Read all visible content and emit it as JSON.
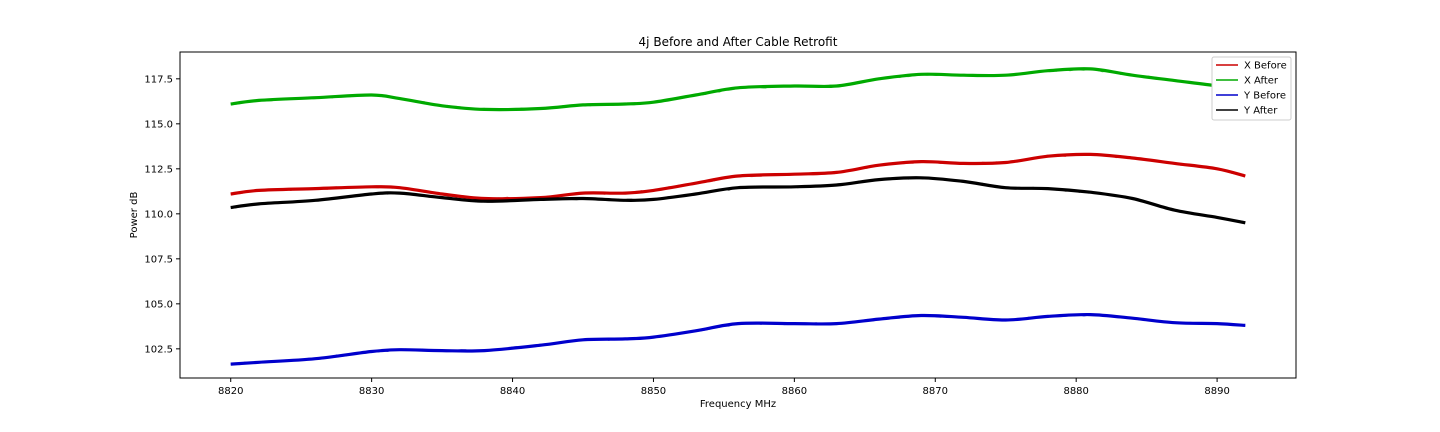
{
  "chart_data": {
    "type": "line",
    "title": "4j Before and After Cable Retrofit",
    "xlabel": "Frequency MHz",
    "ylabel": "Power dB",
    "xlim": [
      8816.4,
      8895.6
    ],
    "ylim": [
      100.88,
      118.99
    ],
    "xticks": [
      8820,
      8830,
      8840,
      8850,
      8860,
      8870,
      8880,
      8890
    ],
    "xtick_labels": [
      "8820",
      "8830",
      "8840",
      "8850",
      "8860",
      "8870",
      "8880",
      "8890"
    ],
    "yticks": [
      102.5,
      105.0,
      107.5,
      110.0,
      112.5,
      115.0,
      117.5
    ],
    "ytick_labels": [
      "102.5",
      "105.0",
      "107.5",
      "110.0",
      "112.5",
      "115.0",
      "117.5"
    ],
    "grid": false,
    "legend_position": "top-right",
    "series": [
      {
        "name": "X Before",
        "color": "#cc0000",
        "x": [
          8820,
          8822,
          8826,
          8830,
          8832,
          8835,
          8838,
          8842,
          8845,
          8848,
          8850,
          8853,
          8856,
          8860,
          8863,
          8866,
          8869,
          8872,
          8875,
          8878,
          8881,
          8884,
          8887,
          8890,
          8892
        ],
        "y": [
          111.1,
          111.3,
          111.4,
          111.5,
          111.45,
          111.1,
          110.85,
          110.9,
          111.15,
          111.15,
          111.3,
          111.7,
          112.1,
          112.2,
          112.3,
          112.7,
          112.9,
          112.8,
          112.85,
          113.2,
          113.3,
          113.1,
          112.8,
          112.5,
          112.1
        ]
      },
      {
        "name": "X After",
        "color": "#00aa00",
        "x": [
          8820,
          8822,
          8826,
          8830,
          8832,
          8835,
          8838,
          8842,
          8845,
          8848,
          8850,
          8853,
          8856,
          8860,
          8863,
          8866,
          8869,
          8872,
          8875,
          8878,
          8881,
          8884,
          8887,
          8890,
          8892
        ],
        "y": [
          116.1,
          116.3,
          116.45,
          116.6,
          116.4,
          116.0,
          115.8,
          115.85,
          116.05,
          116.1,
          116.2,
          116.6,
          117.0,
          117.1,
          117.1,
          117.5,
          117.75,
          117.7,
          117.7,
          117.95,
          118.05,
          117.7,
          117.4,
          117.1,
          116.75
        ]
      },
      {
        "name": "Y Before",
        "color": "#0000cc",
        "x": [
          8820,
          8822,
          8826,
          8830,
          8832,
          8835,
          8838,
          8842,
          8845,
          8848,
          8850,
          8853,
          8856,
          8860,
          8863,
          8866,
          8869,
          8872,
          8875,
          8878,
          8881,
          8884,
          8887,
          8890,
          8892
        ],
        "y": [
          101.65,
          101.75,
          101.95,
          102.35,
          102.45,
          102.4,
          102.4,
          102.7,
          103.0,
          103.05,
          103.15,
          103.5,
          103.9,
          103.9,
          103.9,
          104.15,
          104.35,
          104.25,
          104.1,
          104.3,
          104.4,
          104.2,
          103.95,
          103.9,
          103.8
        ]
      },
      {
        "name": "Y After",
        "color": "#000000",
        "x": [
          8820,
          8822,
          8826,
          8830,
          8832,
          8835,
          8838,
          8842,
          8845,
          8848,
          8850,
          8853,
          8856,
          8860,
          8863,
          8866,
          8869,
          8872,
          8875,
          8878,
          8881,
          8884,
          8887,
          8890,
          8892
        ],
        "y": [
          110.35,
          110.55,
          110.75,
          111.1,
          111.15,
          110.9,
          110.7,
          110.8,
          110.85,
          110.75,
          110.8,
          111.1,
          111.45,
          111.5,
          111.6,
          111.9,
          112.0,
          111.8,
          111.45,
          111.4,
          111.2,
          110.85,
          110.2,
          109.8,
          109.5
        ]
      }
    ]
  }
}
